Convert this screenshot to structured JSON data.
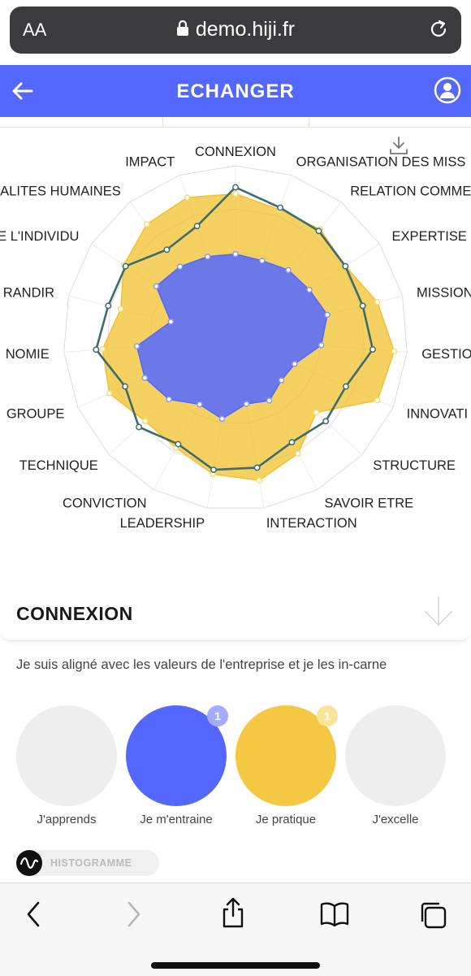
{
  "browser": {
    "aa_label": "AA",
    "url": "demo.hiji.fr"
  },
  "header": {
    "title": "ECHANGER"
  },
  "chart_data": {
    "type": "radar",
    "axes": [
      "CONNEXION",
      "ORGANISATION DES MISS",
      "RELATION COMME",
      "EXPERTISE",
      "MISSION",
      "GESTIO",
      "INNOVATI",
      "STRUCTURE",
      "SAVOIR ETRE",
      "INTERACTION",
      "LEADERSHIP",
      "CONVICTION",
      "TECHNIQUE",
      "GROUPE",
      "NOMIE",
      "RANDIR",
      "E L'INDIVIDU",
      "ALITES HUMAINES",
      "IMPACT"
    ],
    "max": 4,
    "rings": 4,
    "series": [
      {
        "color": "#f2c12e",
        "fill_opacity": 0.75,
        "values": [
          3.35,
          3.15,
          3.2,
          3.05,
          3.4,
          3.7,
          3.6,
          2.55,
          3.05,
          3.35,
          3.2,
          2.9,
          2.85,
          3.2,
          3.1,
          2.75,
          3.1,
          3.35,
          3.45
        ]
      },
      {
        "color": "#5468ff",
        "fill_opacity": 0.85,
        "values": [
          1.95,
          1.9,
          2.0,
          2.05,
          2.2,
          2.0,
          1.5,
          1.45,
          1.65,
          1.55,
          1.9,
          1.75,
          2.1,
          2.3,
          2.3,
          1.55,
          2.2,
          2.1,
          2.0
        ]
      },
      {
        "color": "#3e6b6b",
        "fill_opacity": 0,
        "values": [
          3.5,
          3.2,
          3.15,
          3.05,
          3.05,
          3.2,
          2.8,
          2.85,
          2.75,
          3.05,
          3.1,
          2.8,
          3.05,
          2.8,
          3.25,
          3.05,
          3.05,
          2.6,
          2.75
        ]
      }
    ]
  },
  "competency": {
    "title": "CONNEXION",
    "description": "Je suis aligné avec les valeurs de l'entreprise et je les in-carne",
    "levels": [
      {
        "label": "J'apprends",
        "color": "#eeeeee",
        "badge": ""
      },
      {
        "label": "Je m'entraine",
        "color": "#5468ff",
        "badge": "1",
        "badge_color": "#a3acff"
      },
      {
        "label": "Je pratique",
        "color": "#f5c844",
        "badge": "1",
        "badge_color": "#f9e49a"
      },
      {
        "label": "J'excelle",
        "color": "#eeeeee",
        "badge": ""
      }
    ],
    "toggle_label": "HISTOGRAMME"
  },
  "icons": {
    "lock": "lock-icon",
    "reload": "reload-icon",
    "back": "arrow-left-icon",
    "profile": "user-circle-icon",
    "download": "download-icon",
    "share": "share-icon",
    "bookmarks": "book-icon",
    "tabs": "tabs-icon"
  }
}
